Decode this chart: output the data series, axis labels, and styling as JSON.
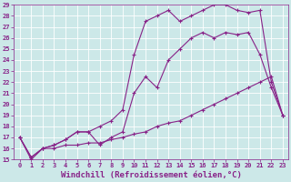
{
  "xlabel": "Windchill (Refroidissement éolien,°C)",
  "background_color": "#cce8e8",
  "grid_color": "#ffffff",
  "line_color": "#882288",
  "xlim": [
    -0.5,
    23.5
  ],
  "ylim": [
    15,
    29
  ],
  "xticks": [
    0,
    1,
    2,
    3,
    4,
    5,
    6,
    7,
    8,
    9,
    10,
    11,
    12,
    13,
    14,
    15,
    16,
    17,
    18,
    19,
    20,
    21,
    22,
    23
  ],
  "yticks": [
    15,
    16,
    17,
    18,
    19,
    20,
    21,
    22,
    23,
    24,
    25,
    26,
    27,
    28,
    29
  ],
  "line1_x": [
    0,
    1,
    2,
    3,
    4,
    5,
    6,
    7,
    8,
    9,
    10,
    11,
    12,
    13,
    14,
    15,
    16,
    17,
    18,
    19,
    20,
    21,
    22,
    23
  ],
  "line1_y": [
    17.0,
    15.0,
    16.0,
    16.0,
    16.3,
    16.3,
    16.5,
    16.5,
    16.8,
    17.0,
    17.3,
    17.5,
    18.0,
    18.3,
    18.5,
    19.0,
    19.5,
    20.0,
    20.5,
    21.0,
    21.5,
    22.0,
    22.5,
    19.0
  ],
  "line2_x": [
    0,
    1,
    2,
    3,
    4,
    5,
    6,
    7,
    8,
    9,
    10,
    11,
    12,
    13,
    14,
    15,
    16,
    17,
    18,
    19,
    20,
    21,
    22,
    23
  ],
  "line2_y": [
    17.0,
    15.2,
    16.0,
    16.3,
    16.8,
    17.5,
    17.5,
    16.3,
    17.0,
    17.5,
    21.0,
    22.5,
    21.5,
    24.0,
    25.0,
    26.0,
    26.5,
    26.0,
    26.5,
    26.3,
    26.5,
    24.5,
    21.5,
    19.0
  ],
  "line3_x": [
    0,
    1,
    2,
    3,
    4,
    5,
    6,
    7,
    8,
    9,
    10,
    11,
    12,
    13,
    14,
    15,
    16,
    17,
    18,
    19,
    20,
    21,
    22,
    23
  ],
  "line3_y": [
    17.0,
    15.2,
    16.0,
    16.3,
    16.8,
    17.5,
    17.5,
    18.0,
    18.5,
    19.5,
    24.5,
    27.5,
    28.0,
    28.5,
    27.5,
    28.0,
    28.5,
    29.0,
    29.0,
    28.5,
    28.3,
    28.5,
    22.0,
    19.0
  ],
  "marker": "+",
  "markersize": 3,
  "linewidth": 0.8,
  "tick_fontsize": 5.0,
  "xlabel_fontsize": 6.5,
  "tick_color": "#882288",
  "xlabel_color": "#882288"
}
